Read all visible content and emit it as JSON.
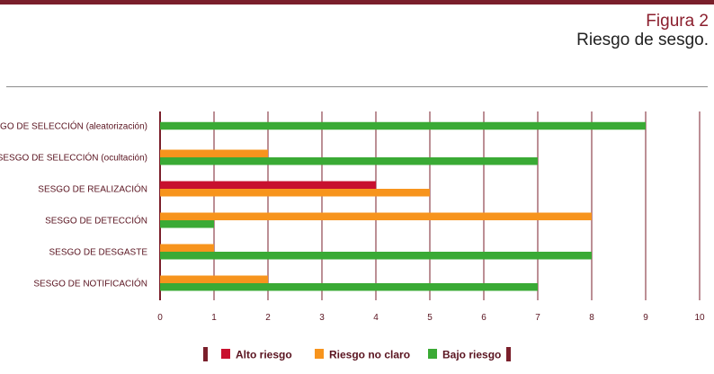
{
  "figure": {
    "number": "Figura 2",
    "title": "Riesgo de sesgo."
  },
  "chart_data": {
    "type": "bar",
    "orientation": "horizontal",
    "categories": [
      "SESGO DE SELECCIÓN (aleatorización)",
      "SESGO DE SELECCIÓN (ocultación)",
      "SESGO DE REALIZACIÓN",
      "SESGO DE DETECCIÓN",
      "SESGO DE DESGASTE",
      "SESGO DE NOTIFICACIÓN"
    ],
    "series": [
      {
        "name": "Alto riesgo",
        "color": "#c8102e",
        "values": [
          0,
          0,
          4,
          0,
          0,
          0
        ]
      },
      {
        "name": "Riesgo no claro",
        "color": "#f7941d",
        "values": [
          0,
          2,
          5,
          8,
          1,
          2
        ]
      },
      {
        "name": "Bajo riesgo",
        "color": "#3aaa35",
        "values": [
          9,
          7,
          0,
          1,
          8,
          7
        ]
      }
    ],
    "xlim": [
      0,
      10
    ],
    "xticks": [
      "0",
      "1",
      "2",
      "3",
      "4",
      "5",
      "6",
      "7",
      "8",
      "9",
      "10"
    ],
    "grid": true,
    "legend_position": "bottom",
    "title": "",
    "xlabel": "",
    "ylabel": ""
  },
  "colors": {
    "axis": "#7a1f2b",
    "grid": "#7a1f2b",
    "text": "#5a1420"
  }
}
